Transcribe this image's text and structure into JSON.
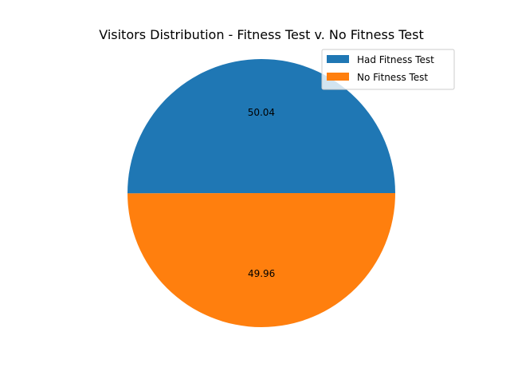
{
  "chart_data": {
    "type": "pie",
    "title": "Visitors Distribution - Fitness Test v. No Fitness Test",
    "slices": [
      {
        "label": "Had Fitness Test",
        "value": 50.04,
        "display": "50.04",
        "color": "#1f77b4"
      },
      {
        "label": "No Fitness Test",
        "value": 49.96,
        "display": "49.96",
        "color": "#ff7f0e"
      }
    ],
    "legend_position": "top-right"
  }
}
